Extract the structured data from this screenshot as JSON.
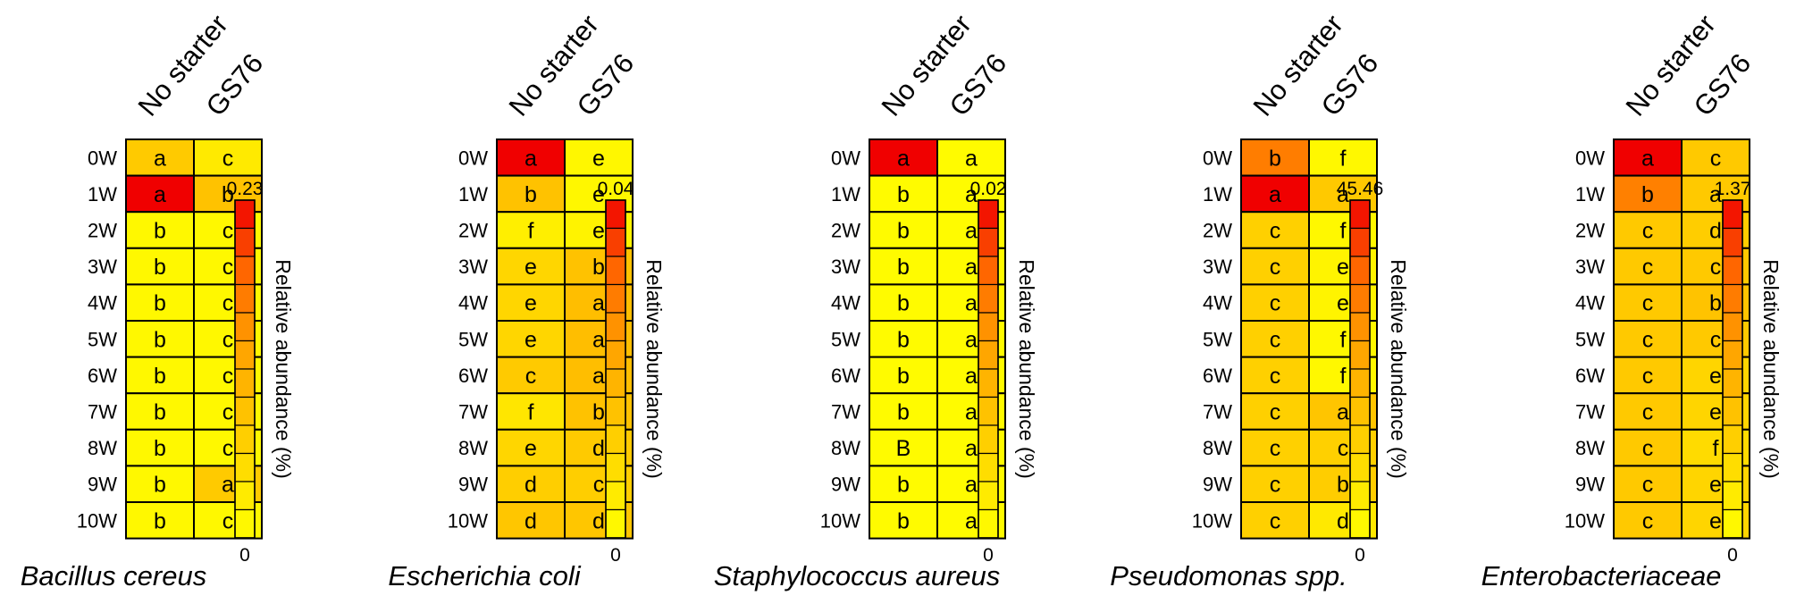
{
  "chart_data": [
    {
      "type": "heatmap",
      "title": "Bacillus cereus",
      "columns": [
        "No starter",
        "GS76"
      ],
      "rows": [
        "0W",
        "1W",
        "2W",
        "3W",
        "4W",
        "5W",
        "6W",
        "7W",
        "8W",
        "9W",
        "10W"
      ],
      "relative_abundance": [
        [
          0.075,
          0.03
        ],
        [
          0.23,
          0.085
        ],
        [
          0.01,
          0.01
        ],
        [
          0.01,
          0.01
        ],
        [
          0.01,
          0.01
        ],
        [
          0.01,
          0.01
        ],
        [
          0.01,
          0.01
        ],
        [
          0.01,
          0.01
        ],
        [
          0.01,
          0.01
        ],
        [
          0.01,
          0.075
        ],
        [
          0.01,
          0.01
        ]
      ],
      "letters": [
        [
          "a",
          "c"
        ],
        [
          "a",
          "b"
        ],
        [
          "b",
          "c"
        ],
        [
          "b",
          "c"
        ],
        [
          "b",
          "c"
        ],
        [
          "b",
          "c"
        ],
        [
          "b",
          "c"
        ],
        [
          "b",
          "c"
        ],
        [
          "b",
          "c"
        ],
        [
          "b",
          "a"
        ],
        [
          "b",
          "c"
        ]
      ],
      "colorbar": {
        "max_label": "0.23",
        "min_label": "0",
        "label": "Relative abundance (%)",
        "range": [
          0,
          0.23
        ]
      }
    },
    {
      "type": "heatmap",
      "title": "Escherichia coli",
      "columns": [
        "No starter",
        "GS76"
      ],
      "rows": [
        "0W",
        "1W",
        "2W",
        "3W",
        "4W",
        "5W",
        "6W",
        "7W",
        "8W",
        "9W",
        "10W"
      ],
      "relative_abundance": [
        [
          0.04,
          0.002
        ],
        [
          0.015,
          0.002
        ],
        [
          0.004,
          0.003
        ],
        [
          0.01,
          0.015
        ],
        [
          0.01,
          0.016
        ],
        [
          0.01,
          0.016
        ],
        [
          0.013,
          0.016
        ],
        [
          0.006,
          0.015
        ],
        [
          0.01,
          0.013
        ],
        [
          0.012,
          0.012
        ],
        [
          0.014,
          0.014
        ]
      ],
      "letters": [
        [
          "a",
          "e"
        ],
        [
          "b",
          "e"
        ],
        [
          "f",
          "e"
        ],
        [
          "e",
          "b"
        ],
        [
          "e",
          "a"
        ],
        [
          "e",
          "a"
        ],
        [
          "c",
          "a"
        ],
        [
          "f",
          "b"
        ],
        [
          "e",
          "d"
        ],
        [
          "d",
          "c"
        ],
        [
          "d",
          "d"
        ]
      ],
      "colorbar": {
        "max_label": "0.04",
        "min_label": "0",
        "label": "Relative abundance (%)",
        "range": [
          0,
          0.04
        ]
      }
    },
    {
      "type": "heatmap",
      "title": "Staphylococcus aureus",
      "columns": [
        "No starter",
        "GS76"
      ],
      "rows": [
        "0W",
        "1W",
        "2W",
        "3W",
        "4W",
        "5W",
        "6W",
        "7W",
        "8W",
        "9W",
        "10W"
      ],
      "relative_abundance": [
        [
          0.02,
          0.0005
        ],
        [
          0.0005,
          0.0005
        ],
        [
          0.0005,
          0.0005
        ],
        [
          0.0005,
          0.0005
        ],
        [
          0.0005,
          0.0005
        ],
        [
          0.0005,
          0.0005
        ],
        [
          0.0005,
          0.0005
        ],
        [
          0.0005,
          0.0005
        ],
        [
          0.0005,
          0.0005
        ],
        [
          0.0005,
          0.0005
        ],
        [
          0.0005,
          0.0005
        ]
      ],
      "letters": [
        [
          "a",
          "a"
        ],
        [
          "b",
          "a"
        ],
        [
          "b",
          "a"
        ],
        [
          "b",
          "a"
        ],
        [
          "b",
          "a"
        ],
        [
          "b",
          "a"
        ],
        [
          "b",
          "a"
        ],
        [
          "b",
          "a"
        ],
        [
          "B",
          "a"
        ],
        [
          "b",
          "a"
        ],
        [
          "b",
          "a"
        ]
      ],
      "colorbar": {
        "max_label": "0.02",
        "min_label": "0",
        "label": "Relative abundance (%)",
        "range": [
          0,
          0.02
        ]
      }
    },
    {
      "type": "heatmap",
      "title": "Pseudomonas spp.",
      "columns": [
        "No starter",
        "GS76"
      ],
      "rows": [
        "0W",
        "1W",
        "2W",
        "3W",
        "4W",
        "5W",
        "6W",
        "7W",
        "8W",
        "9W",
        "10W"
      ],
      "relative_abundance": [
        [
          32,
          2
        ],
        [
          45.46,
          15
        ],
        [
          13,
          2
        ],
        [
          13,
          3
        ],
        [
          13,
          3
        ],
        [
          13,
          2
        ],
        [
          13,
          2
        ],
        [
          13,
          16
        ],
        [
          13,
          13
        ],
        [
          13,
          14
        ],
        [
          13,
          6
        ]
      ],
      "letters": [
        [
          "b",
          "f"
        ],
        [
          "a",
          "a"
        ],
        [
          "c",
          "f"
        ],
        [
          "c",
          "e"
        ],
        [
          "c",
          "e"
        ],
        [
          "c",
          "f"
        ],
        [
          "c",
          "f"
        ],
        [
          "c",
          "a"
        ],
        [
          "c",
          "c"
        ],
        [
          "c",
          "b"
        ],
        [
          "c",
          "d"
        ]
      ],
      "colorbar": {
        "max_label": "45.46",
        "min_label": "0",
        "label": "Relative abundance (%)",
        "range": [
          0,
          45.46
        ]
      }
    },
    {
      "type": "heatmap",
      "title": "Enterobacteriaceae",
      "columns": [
        "No starter",
        "GS76"
      ],
      "rows": [
        "0W",
        "1W",
        "2W",
        "3W",
        "4W",
        "5W",
        "6W",
        "7W",
        "8W",
        "9W",
        "10W"
      ],
      "relative_abundance": [
        [
          1.37,
          0.45
        ],
        [
          0.95,
          0.45
        ],
        [
          0.45,
          0.42
        ],
        [
          0.45,
          0.45
        ],
        [
          0.45,
          0.5
        ],
        [
          0.45,
          0.45
        ],
        [
          0.45,
          0.35
        ],
        [
          0.45,
          0.35
        ],
        [
          0.45,
          0.3
        ],
        [
          0.45,
          0.35
        ],
        [
          0.45,
          0.35
        ]
      ],
      "letters": [
        [
          "a",
          "c"
        ],
        [
          "b",
          "a"
        ],
        [
          "c",
          "d"
        ],
        [
          "c",
          "c"
        ],
        [
          "c",
          "b"
        ],
        [
          "c",
          "c"
        ],
        [
          "c",
          "e"
        ],
        [
          "c",
          "e"
        ],
        [
          "c",
          "f"
        ],
        [
          "c",
          "e"
        ],
        [
          "c",
          "e"
        ]
      ],
      "colorbar": {
        "max_label": "1.37",
        "min_label": "0",
        "label": "Relative abundance (%)",
        "range": [
          0,
          1.37
        ]
      }
    }
  ]
}
